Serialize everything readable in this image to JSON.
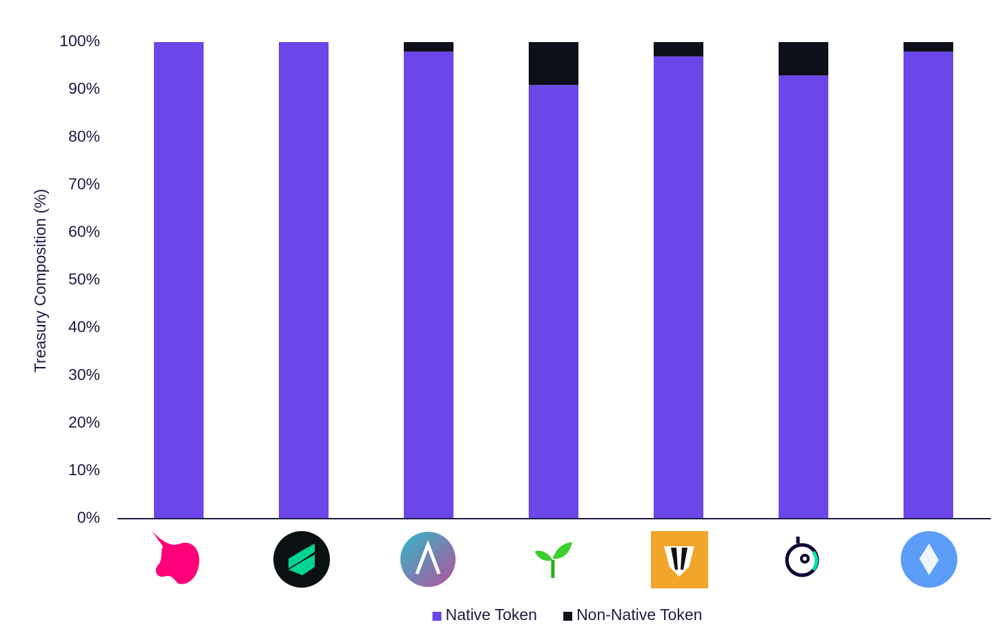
{
  "chart_data": {
    "type": "bar",
    "stacked": true,
    "y_label": "Treasury Composition (%)",
    "categories": [
      null,
      null,
      null,
      null,
      null,
      null,
      null
    ],
    "series": [
      {
        "name": "Native Token",
        "color": "#6b46e8",
        "values": [
          100,
          100,
          98,
          91,
          97,
          93,
          98
        ]
      },
      {
        "name": "Non-Native Token",
        "color": "#0d1018",
        "values": [
          0,
          0,
          2,
          9,
          3,
          7,
          2
        ]
      }
    ],
    "ylim": [
      0,
      100
    ],
    "yticks": [
      {
        "value": 0,
        "label": "0%"
      },
      {
        "value": 10,
        "label": "10%"
      },
      {
        "value": 20,
        "label": "20%"
      },
      {
        "value": 30,
        "label": "30%"
      },
      {
        "value": 40,
        "label": "40%"
      },
      {
        "value": 50,
        "label": "50%"
      },
      {
        "value": 60,
        "label": "60%"
      },
      {
        "value": 70,
        "label": "70%"
      },
      {
        "value": 80,
        "label": "80%"
      },
      {
        "value": 90,
        "label": "90%"
      },
      {
        "value": 100,
        "label": "100%"
      }
    ],
    "grid": false,
    "legend": "bottom"
  }
}
